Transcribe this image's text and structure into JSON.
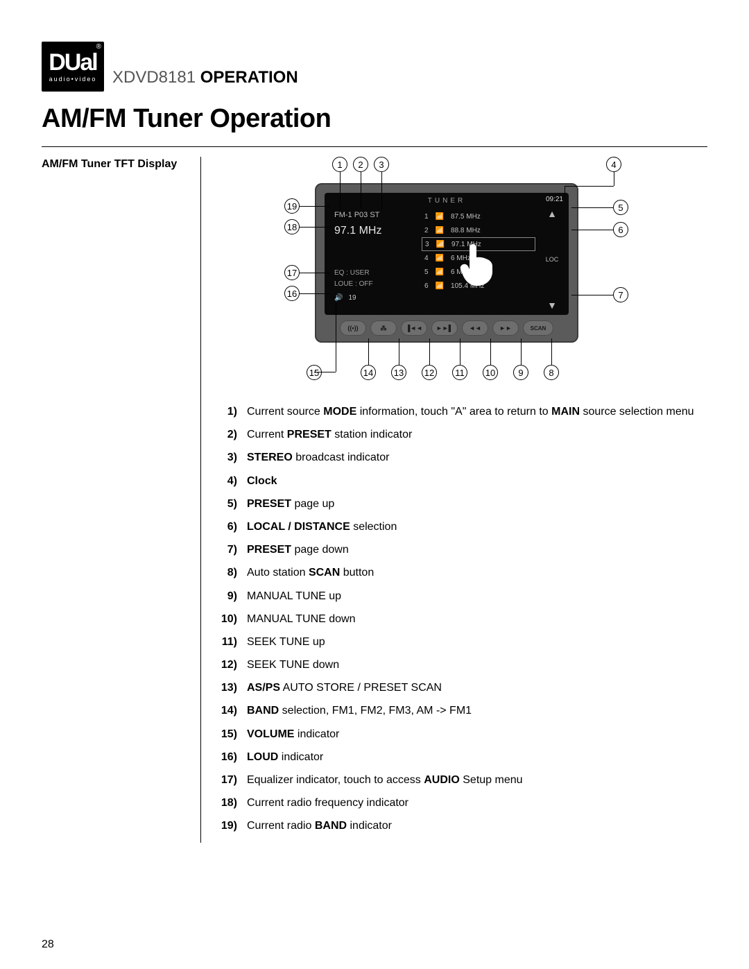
{
  "logo": {
    "main": "DUal",
    "sub": "audio•video",
    "reg": "®"
  },
  "header": {
    "model": "XDVD8181",
    "word": "OPERATION"
  },
  "section_title": "AM/FM Tuner Operation",
  "left_label": "AM/FM Tuner TFT Display",
  "page_number": "28",
  "screen": {
    "topbar": "TUNER",
    "clock": "09:21",
    "band_line": "FM-1  P03  ST",
    "freq": "97.1 MHz",
    "eq": "EQ    : USER",
    "loud": "LOUE : OFF",
    "vol_icon": "🔊",
    "vol_val": "19",
    "loc": "LOC",
    "presets": [
      {
        "n": "1",
        "f": "87.5 MHz"
      },
      {
        "n": "2",
        "f": "88.8 MHz"
      },
      {
        "n": "3",
        "f": "97.1 MHz"
      },
      {
        "n": "4",
        "f": "6 MHz"
      },
      {
        "n": "5",
        "f": "6 MHz"
      },
      {
        "n": "6",
        "f": "105.4 MHz"
      }
    ],
    "buttons": {
      "b14": "((•))",
      "b13": "⁂",
      "b12": "▐◄◄",
      "b11": "►►▌",
      "b10": "◄◄",
      "b9": "►►",
      "scan": "SCAN"
    }
  },
  "callouts": {
    "c1": "1",
    "c2": "2",
    "c3": "3",
    "c4": "4",
    "c5": "5",
    "c6": "6",
    "c7": "7",
    "c8": "8",
    "c9": "9",
    "c10": "10",
    "c11": "11",
    "c12": "12",
    "c13": "13",
    "c14": "14",
    "c15": "15",
    "c16": "16",
    "c17": "17",
    "c18": "18",
    "c19": "19"
  },
  "defs": [
    {
      "n": "1)",
      "html": "Current source <b>MODE</b> information, touch \"A\" area to return to <b>MAIN</b> source selection menu"
    },
    {
      "n": "2)",
      "html": "Current <b>PRESET</b> station indicator"
    },
    {
      "n": "3)",
      "html": "<b>STEREO</b> broadcast indicator"
    },
    {
      "n": "4)",
      "html": "<b>Clock</b>"
    },
    {
      "n": "5)",
      "html": "<b>PRESET</b> page up"
    },
    {
      "n": "6)",
      "html": "<b>LOCAL / DISTANCE</b> selection"
    },
    {
      "n": "7)",
      "html": "<b>PRESET</b> page down"
    },
    {
      "n": "8)",
      "html": "Auto station <b>SCAN</b> button"
    },
    {
      "n": "9)",
      "html": "MANUAL TUNE up"
    },
    {
      "n": "10)",
      "html": "MANUAL TUNE down"
    },
    {
      "n": "11)",
      "html": "SEEK TUNE up"
    },
    {
      "n": "12)",
      "html": "SEEK TUNE down"
    },
    {
      "n": "13)",
      "html": "<b>AS/PS</b> AUTO STORE / PRESET SCAN"
    },
    {
      "n": "14)",
      "html": "<b>BAND</b> selection, FM1, FM2, FM3, AM -> FM1"
    },
    {
      "n": "15)",
      "html": "<b>VOLUME</b> indicator"
    },
    {
      "n": "16)",
      "html": "<b>LOUD</b> indicator"
    },
    {
      "n": "17)",
      "html": "Equalizer indicator, touch to access <b>AUDIO</b> Setup menu"
    },
    {
      "n": "18)",
      "html": "Current radio frequency indicator"
    },
    {
      "n": "19)",
      "html": "Current radio <b>BAND</b> indicator"
    }
  ]
}
